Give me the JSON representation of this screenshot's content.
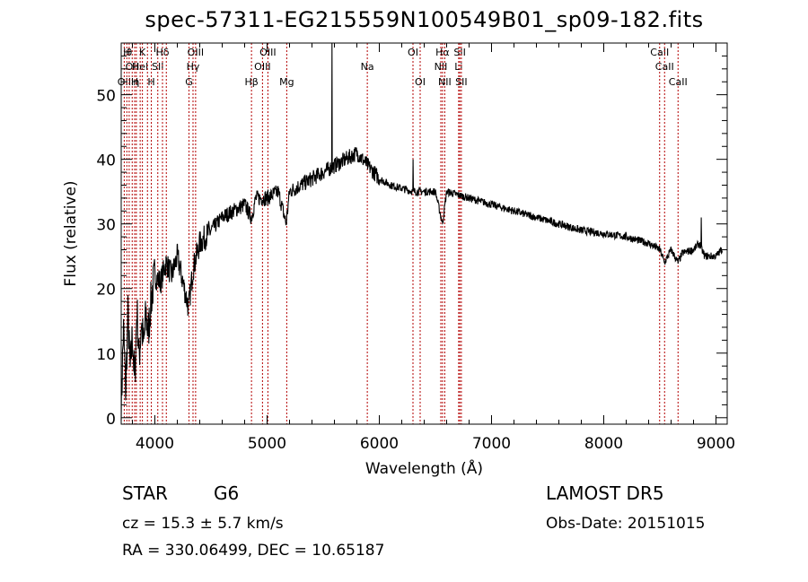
{
  "header": {
    "title": "spec-57311-EG215559N100549B01_sp09-182.fits"
  },
  "footer": {
    "object_class": "STAR",
    "subclass": "G6",
    "survey": "LAMOST  DR5",
    "redshift": "cz = 15.3 ± 5.7 km/s",
    "obs_date": "Obs-Date: 20151015",
    "coords": "RA = 330.06499, DEC =  10.65187"
  },
  "chart_data": {
    "type": "line",
    "title": "spec-57311-EG215559N100549B01_sp09-182.fits",
    "xlabel": "Wavelength (Å)",
    "ylabel": "Flux (relative)",
    "xlim": [
      3700,
      9100
    ],
    "ylim": [
      -1,
      58
    ],
    "x_ticks": [
      4000,
      5000,
      6000,
      7000,
      8000,
      9000
    ],
    "y_ticks": [
      0,
      10,
      20,
      30,
      40,
      50
    ],
    "grid": false,
    "line_color": "#000000",
    "marker_color": "#b30000",
    "spectrum_anchors": [
      [
        3700,
        1
      ],
      [
        3720,
        14
      ],
      [
        3740,
        4
      ],
      [
        3760,
        16
      ],
      [
        3780,
        7
      ],
      [
        3800,
        13
      ],
      [
        3820,
        5
      ],
      [
        3840,
        17
      ],
      [
        3860,
        9
      ],
      [
        3880,
        15
      ],
      [
        3900,
        11
      ],
      [
        3920,
        16
      ],
      [
        3940,
        13
      ],
      [
        3960,
        17
      ],
      [
        3980,
        20
      ],
      [
        4000,
        22
      ],
      [
        4050,
        21
      ],
      [
        4100,
        24
      ],
      [
        4150,
        22
      ],
      [
        4200,
        25
      ],
      [
        4250,
        21
      ],
      [
        4300,
        17
      ],
      [
        4340,
        23
      ],
      [
        4400,
        27
      ],
      [
        4500,
        29
      ],
      [
        4600,
        31
      ],
      [
        4700,
        32
      ],
      [
        4800,
        33
      ],
      [
        4860,
        31
      ],
      [
        4900,
        34
      ],
      [
        5000,
        34
      ],
      [
        5100,
        35
      ],
      [
        5170,
        30
      ],
      [
        5200,
        35
      ],
      [
        5300,
        36
      ],
      [
        5400,
        37
      ],
      [
        5500,
        38
      ],
      [
        5600,
        39
      ],
      [
        5700,
        40
      ],
      [
        5800,
        41
      ],
      [
        5850,
        40
      ],
      [
        5900,
        39
      ],
      [
        6000,
        37
      ],
      [
        6100,
        36
      ],
      [
        6200,
        35.5
      ],
      [
        6300,
        35
      ],
      [
        6400,
        35
      ],
      [
        6500,
        35
      ],
      [
        6563,
        30
      ],
      [
        6600,
        35
      ],
      [
        6700,
        34.5
      ],
      [
        6800,
        34
      ],
      [
        6900,
        33.5
      ],
      [
        7000,
        33
      ],
      [
        7200,
        32
      ],
      [
        7400,
        31
      ],
      [
        7600,
        30
      ],
      [
        7800,
        29
      ],
      [
        8000,
        28.5
      ],
      [
        8200,
        28
      ],
      [
        8400,
        27
      ],
      [
        8500,
        26
      ],
      [
        8542,
        24
      ],
      [
        8600,
        26
      ],
      [
        8662,
        24
      ],
      [
        8700,
        25.5
      ],
      [
        8800,
        26
      ],
      [
        8850,
        27
      ],
      [
        8900,
        25
      ],
      [
        9000,
        25
      ],
      [
        9050,
        26
      ]
    ],
    "spikes": [
      {
        "x": 5577,
        "y": 58
      },
      {
        "x": 6300,
        "y": 40
      },
      {
        "x": 8870,
        "y": 31
      }
    ],
    "line_markers": [
      {
        "x": 3727,
        "label": "OII",
        "row": 3
      },
      {
        "x": 3750,
        "label": "H",
        "row": 1
      },
      {
        "x": 3771,
        "label": "θ",
        "row": 1
      },
      {
        "x": 3798,
        "label": "OII",
        "row": 2
      },
      {
        "x": 3820,
        "label": "H",
        "row": 3
      },
      {
        "x": 3835,
        "label": "η",
        "row": 3
      },
      {
        "x": 3869,
        "label": "HeI",
        "row": 2
      },
      {
        "x": 3889,
        "label": "K",
        "row": 1
      },
      {
        "x": 3934,
        "label": "",
        "row": 0
      },
      {
        "x": 3968,
        "label": "H",
        "row": 3
      },
      {
        "x": 4026,
        "label": "SII",
        "row": 2
      },
      {
        "x": 4068,
        "label": "Hδ",
        "row": 1
      },
      {
        "x": 4102,
        "label": "",
        "row": 0
      },
      {
        "x": 4304,
        "label": "G",
        "row": 3
      },
      {
        "x": 4340,
        "label": "Hγ",
        "row": 2
      },
      {
        "x": 4363,
        "label": "OIII",
        "row": 1
      },
      {
        "x": 4861,
        "label": "Hβ",
        "row": 3
      },
      {
        "x": 4959,
        "label": "OIII",
        "row": 2
      },
      {
        "x": 5007,
        "label": "OIII",
        "row": 1
      },
      {
        "x": 5175,
        "label": "Mg",
        "row": 3
      },
      {
        "x": 5893,
        "label": "Na",
        "row": 2
      },
      {
        "x": 6300,
        "label": "OI",
        "row": 1
      },
      {
        "x": 6364,
        "label": "OI",
        "row": 3
      },
      {
        "x": 6548,
        "label": "NII",
        "row": 2
      },
      {
        "x": 6563,
        "label": "Hα",
        "row": 1
      },
      {
        "x": 6583,
        "label": "NII",
        "row": 3
      },
      {
        "x": 6707,
        "label": "Li",
        "row": 2
      },
      {
        "x": 6717,
        "label": "SII",
        "row": 1
      },
      {
        "x": 6731,
        "label": "SII",
        "row": 3
      },
      {
        "x": 8498,
        "label": "CaII",
        "row": 1
      },
      {
        "x": 8542,
        "label": "CaII",
        "row": 2
      },
      {
        "x": 8662,
        "label": "CaII",
        "row": 3
      }
    ]
  }
}
